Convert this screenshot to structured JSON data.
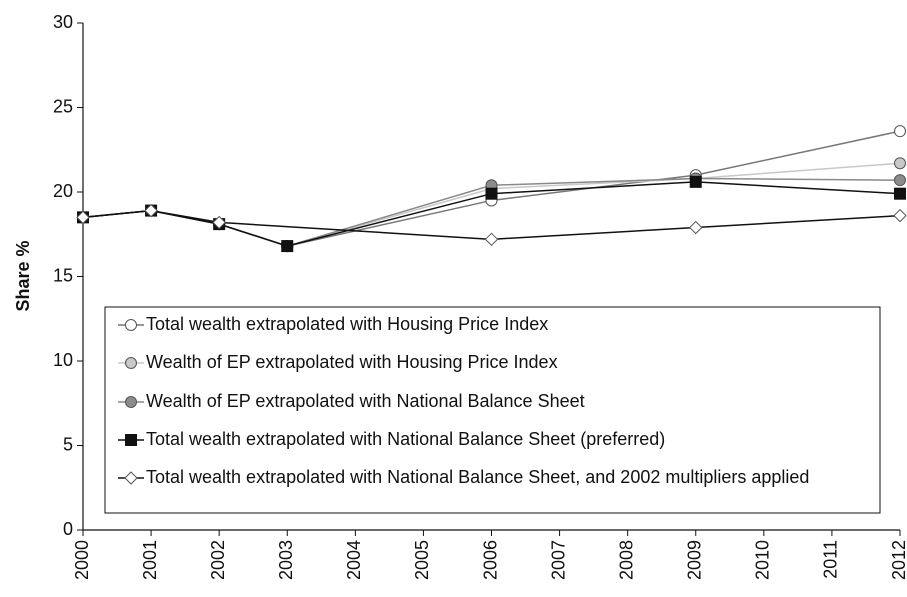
{
  "chart_data": {
    "type": "line",
    "y_label": "Share %",
    "xlim": [
      2000,
      2012
    ],
    "xticks": [
      2000,
      2001,
      2002,
      2003,
      2004,
      2005,
      2006,
      2007,
      2008,
      2009,
      2010,
      2011,
      2012
    ],
    "ylim": [
      0,
      30
    ],
    "yticks": [
      0,
      5,
      10,
      15,
      20,
      25,
      30
    ],
    "grid": false,
    "series": [
      {
        "name": "Total wealth extrapolated with Housing Price Index",
        "color": "#777777",
        "marker": "circle",
        "marker_fill": "#ffffff",
        "x": [
          2000,
          2001,
          2002,
          2003,
          2006,
          2009,
          2012
        ],
        "values": [
          18.5,
          18.9,
          18.1,
          16.8,
          19.5,
          21.0,
          23.6
        ]
      },
      {
        "name": "Wealth of EP extrapolated with Housing Price Index",
        "color": "#c8c8c8",
        "marker": "circle",
        "marker_fill": "#c8c8c8",
        "x": [
          2000,
          2001,
          2002,
          2003,
          2006,
          2009,
          2012
        ],
        "values": [
          18.5,
          18.9,
          18.1,
          16.8,
          20.2,
          20.8,
          21.7
        ]
      },
      {
        "name": "Wealth of EP extrapolated with National Balance Sheet",
        "color": "#888888",
        "marker": "circle",
        "marker_fill": "#8c8c8c",
        "x": [
          2000,
          2001,
          2002,
          2003,
          2006,
          2009,
          2012
        ],
        "values": [
          18.5,
          18.9,
          18.1,
          16.8,
          20.4,
          20.8,
          20.7
        ]
      },
      {
        "name": "Total wealth extrapolated with National Balance Sheet (preferred)",
        "color": "#111111",
        "marker": "square",
        "marker_fill": "#111111",
        "x": [
          2000,
          2001,
          2002,
          2003,
          2006,
          2009,
          2012
        ],
        "values": [
          18.5,
          18.9,
          18.1,
          16.8,
          19.9,
          20.6,
          19.9
        ]
      },
      {
        "name": "Total wealth extrapolated with National Balance Sheet, and 2002 multipliers applied",
        "color": "#111111",
        "marker": "diamond",
        "marker_fill": "#ffffff",
        "x": [
          2000,
          2001,
          2002,
          2006,
          2009,
          2012
        ],
        "values": [
          18.5,
          18.9,
          18.2,
          17.2,
          17.9,
          18.6
        ]
      }
    ]
  }
}
